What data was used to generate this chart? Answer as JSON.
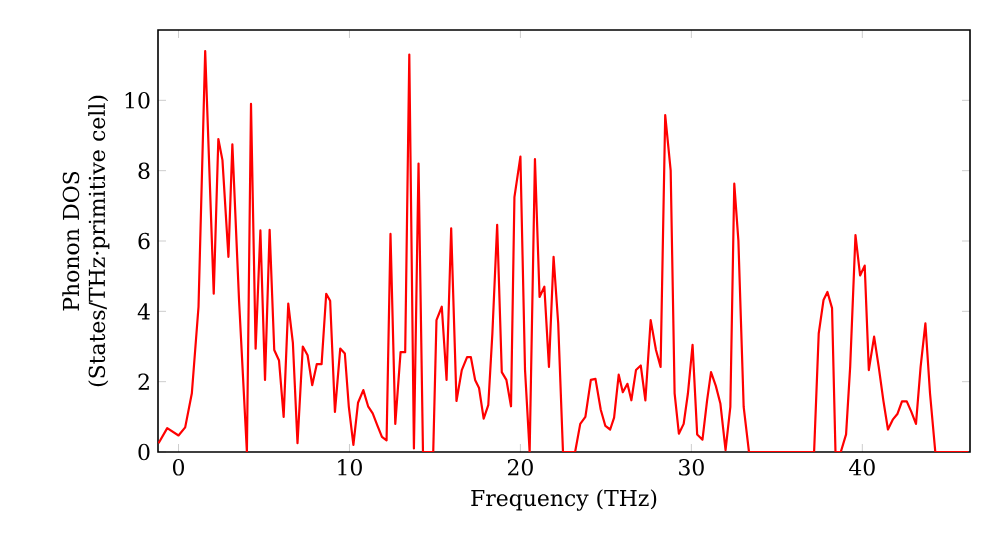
{
  "chart_data": {
    "type": "line",
    "xlabel": "Frequency (THz)",
    "ylabel": "Phonon DOS (States/THz·primitive cell)",
    "x": [
      -1.17,
      -0.66,
      0,
      0.39,
      0.78,
      1.17,
      1.56,
      2.06,
      2.33,
      2.57,
      2.92,
      3.15,
      3.54,
      4.0,
      4.24,
      4.51,
      4.79,
      5.06,
      5.33,
      5.6,
      5.88,
      6.15,
      6.42,
      6.69,
      6.96,
      7.27,
      7.55,
      7.82,
      8.09,
      8.37,
      8.64,
      8.87,
      9.15,
      9.46,
      9.73,
      9.96,
      10.23,
      10.5,
      10.81,
      11.09,
      11.36,
      11.63,
      11.9,
      12.17,
      12.4,
      12.68,
      12.99,
      13.26,
      13.5,
      13.77,
      14.04,
      14.3,
      14.9,
      15.09,
      15.4,
      15.68,
      15.95,
      16.26,
      16.57,
      16.88,
      17.1,
      17.35,
      17.58,
      17.85,
      18.12,
      18.36,
      18.64,
      18.91,
      19.18,
      19.45,
      19.65,
      20.0,
      20.27,
      20.54,
      20.85,
      21.12,
      21.4,
      21.67,
      21.94,
      22.21,
      22.49,
      23.2,
      23.5,
      23.8,
      24.12,
      24.39,
      24.7,
      24.97,
      25.25,
      25.48,
      25.75,
      25.99,
      26.26,
      26.49,
      26.76,
      27.04,
      27.31,
      27.62,
      27.93,
      28.2,
      28.47,
      28.79,
      29.02,
      29.27,
      29.55,
      29.8,
      30.07,
      30.34,
      30.65,
      30.92,
      31.15,
      31.43,
      31.7,
      32.0,
      32.28,
      32.51,
      32.75,
      33.06,
      33.37,
      37.18,
      37.45,
      37.73,
      37.96,
      38.23,
      38.43,
      38.74,
      39.05,
      39.29,
      39.6,
      39.87,
      40.14,
      40.38,
      40.69,
      40.96,
      41.23,
      41.5,
      41.78,
      42.05,
      42.32,
      42.6,
      42.87,
      43.14,
      43.41,
      43.69,
      43.96,
      44.27,
      46.2
    ],
    "series": [
      {
        "color": "#ff0000",
        "values": [
          0.25,
          0.68,
          0.47,
          0.7,
          1.67,
          4.13,
          11.4,
          4.5,
          8.9,
          8.3,
          5.55,
          8.75,
          4.32,
          0,
          9.9,
          2.94,
          6.3,
          2.05,
          6.32,
          2.9,
          2.6,
          1.0,
          4.22,
          3.1,
          0.25,
          3.0,
          2.75,
          1.9,
          2.5,
          2.5,
          4.5,
          4.3,
          1.14,
          2.94,
          2.8,
          1.3,
          0.2,
          1.4,
          1.76,
          1.3,
          1.1,
          0.76,
          0.43,
          0.33,
          6.2,
          0.8,
          2.84,
          2.84,
          11.3,
          0.1,
          8.2,
          0,
          0,
          3.75,
          4.13,
          2.05,
          6.36,
          1.45,
          2.33,
          2.7,
          2.7,
          2.05,
          1.82,
          0.95,
          1.33,
          3.37,
          6.46,
          2.27,
          2.05,
          1.3,
          7.25,
          8.4,
          2.33,
          0,
          8.33,
          4.41,
          4.7,
          2.42,
          5.55,
          3.66,
          0,
          0,
          0.8,
          1.0,
          2.05,
          2.08,
          1.2,
          0.74,
          0.64,
          0.98,
          2.2,
          1.7,
          1.94,
          1.47,
          2.33,
          2.46,
          1.47,
          3.75,
          2.9,
          2.42,
          9.58,
          8.0,
          1.67,
          0.52,
          0.8,
          1.67,
          3.05,
          0.5,
          0.35,
          1.47,
          2.27,
          1.88,
          1.37,
          0.05,
          1.28,
          7.63,
          6.02,
          1.28,
          0,
          0,
          3.37,
          4.32,
          4.55,
          4.09,
          0,
          0,
          0.5,
          2.42,
          6.17,
          5.02,
          5.3,
          2.33,
          3.28,
          2.42,
          1.47,
          0.64,
          0.92,
          1.08,
          1.44,
          1.44,
          1.14,
          0.8,
          2.42,
          3.66,
          1.67,
          0,
          0
        ]
      }
    ],
    "xlim": [
      -1.2,
      46.3
    ],
    "ylim": [
      0,
      12
    ],
    "xticks": [
      0,
      10,
      20,
      30,
      40
    ],
    "yticks": [
      0,
      2,
      4,
      6,
      8,
      10
    ],
    "line_style": "solid",
    "marker": "none"
  }
}
